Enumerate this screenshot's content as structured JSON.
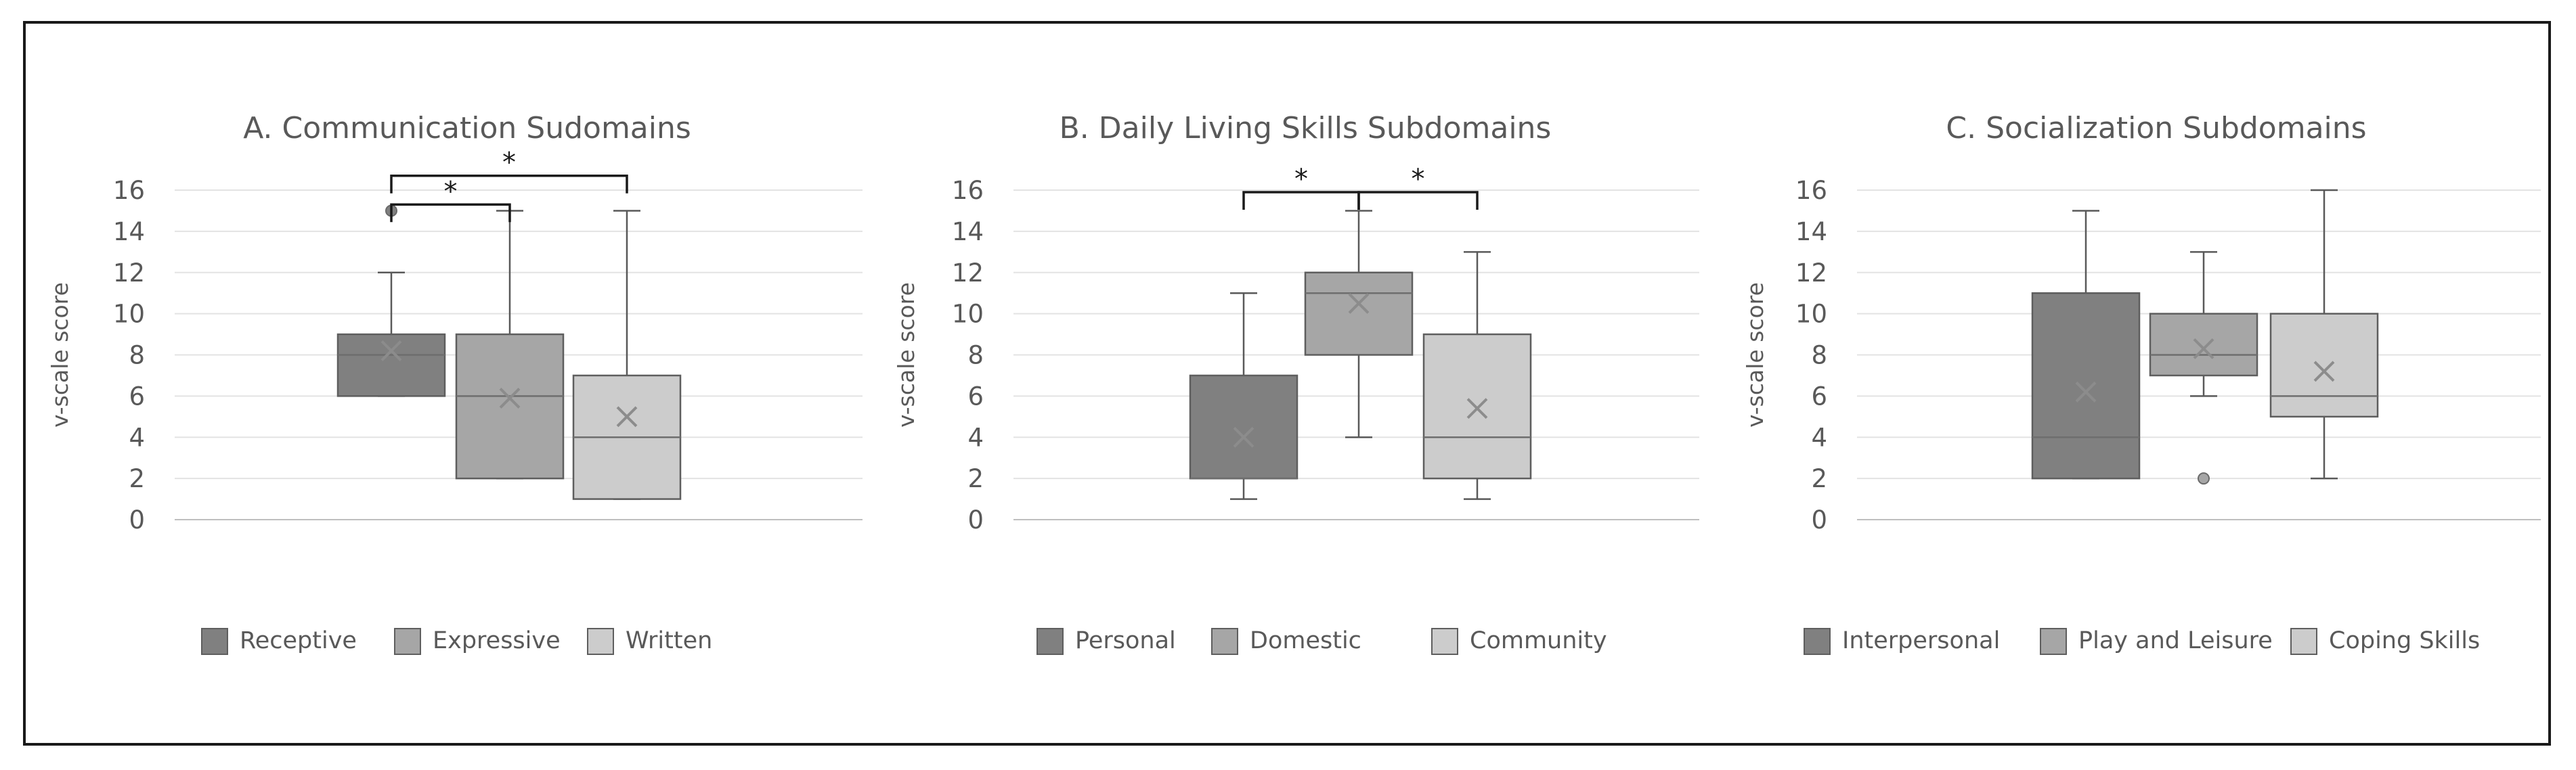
{
  "chart_data": [
    {
      "type": "box",
      "title": "A. Communication Sudomains",
      "ylabel": "v-scale score",
      "ylim": [
        0,
        16
      ],
      "yticks": [
        0,
        2,
        4,
        6,
        8,
        10,
        12,
        14,
        16
      ],
      "series": [
        {
          "name": "Receptive",
          "color": "#808080",
          "min": 6,
          "q1": 6,
          "median": 8,
          "q3": 9,
          "max": 12,
          "mean": 8.2,
          "outliers": [
            15
          ]
        },
        {
          "name": "Expressive",
          "color": "#a6a6a6",
          "min": 2,
          "q1": 2,
          "median": 6,
          "q3": 9,
          "max": 15,
          "mean": 5.9,
          "outliers": []
        },
        {
          "name": "Written",
          "color": "#cccccc",
          "min": 1,
          "q1": 1,
          "median": 4,
          "q3": 7,
          "max": 15,
          "mean": 5.0,
          "outliers": []
        }
      ],
      "significance": [
        {
          "from": 0,
          "to": 1,
          "label": "*",
          "level": 15.3
        },
        {
          "from": 0,
          "to": 2,
          "label": "*",
          "level": 16.7
        }
      ]
    },
    {
      "type": "box",
      "title": "B. Daily Living Skills Subdomains",
      "ylabel": "v-scale score",
      "ylim": [
        0,
        16
      ],
      "yticks": [
        0,
        2,
        4,
        6,
        8,
        10,
        12,
        14,
        16
      ],
      "series": [
        {
          "name": "Personal",
          "color": "#808080",
          "min": 1,
          "q1": 2,
          "median": 2,
          "q3": 7,
          "max": 11,
          "mean": 4.0,
          "outliers": []
        },
        {
          "name": "Domestic",
          "color": "#a6a6a6",
          "min": 4,
          "q1": 8,
          "median": 11,
          "q3": 12,
          "max": 15,
          "mean": 10.5,
          "outliers": []
        },
        {
          "name": "Community",
          "color": "#cccccc",
          "min": 1,
          "q1": 2,
          "median": 4,
          "q3": 9,
          "max": 13,
          "mean": 5.4,
          "outliers": []
        }
      ],
      "significance": [
        {
          "from": 0,
          "to": 1,
          "label": "*",
          "level": 15.9
        },
        {
          "from": 1,
          "to": 2,
          "label": "*",
          "level": 15.9
        }
      ]
    },
    {
      "type": "box",
      "title": "C. Socialization Subdomains",
      "ylabel": "v-scale score",
      "ylim": [
        0,
        16
      ],
      "yticks": [
        0,
        2,
        4,
        6,
        8,
        10,
        12,
        14,
        16
      ],
      "series": [
        {
          "name": "Interpersonal",
          "color": "#808080",
          "min": 2,
          "q1": 2,
          "median": 4,
          "q3": 11,
          "max": 15,
          "mean": 6.2,
          "outliers": []
        },
        {
          "name": "Play and Leisure",
          "color": "#a6a6a6",
          "min": 6,
          "q1": 7,
          "median": 8,
          "q3": 10,
          "max": 13,
          "mean": 8.3,
          "outliers": [
            2
          ]
        },
        {
          "name": "Coping Skills",
          "color": "#cccccc",
          "min": 2,
          "q1": 5,
          "median": 6,
          "q3": 10,
          "max": 16,
          "mean": 7.2,
          "outliers": []
        }
      ],
      "significance": []
    }
  ]
}
